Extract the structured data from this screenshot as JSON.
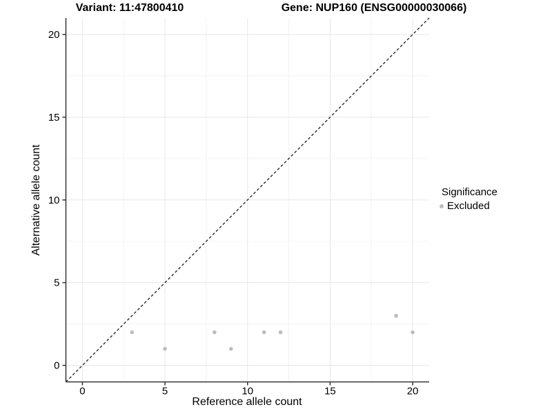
{
  "chart_data": {
    "type": "scatter",
    "titles": {
      "left": "Variant: 11:47800410",
      "right": "Gene: NUP160 (ENSG00000030066)"
    },
    "xlabel": "Reference allele count",
    "ylabel": "Alternative allele count",
    "xlim": [
      -1,
      21
    ],
    "ylim": [
      -1,
      21
    ],
    "xticks": [
      0,
      5,
      10,
      15,
      20
    ],
    "yticks": [
      0,
      5,
      10,
      15,
      20
    ],
    "minor_xticks": [
      2.5,
      7.5,
      12.5,
      17.5
    ],
    "minor_yticks": [
      2.5,
      7.5,
      12.5,
      17.5
    ],
    "grid": "major+minor",
    "identity_line": {
      "style": "dashed",
      "from": [
        -1,
        -1
      ],
      "to": [
        21,
        21
      ]
    },
    "series": [
      {
        "name": "Excluded",
        "color": "#bcbcbc",
        "points": [
          [
            3,
            2
          ],
          [
            5,
            1
          ],
          [
            8,
            2
          ],
          [
            9,
            1
          ],
          [
            11,
            2
          ],
          [
            12,
            2
          ],
          [
            19,
            3
          ],
          [
            20,
            2
          ]
        ]
      }
    ],
    "legend": {
      "title": "Significance",
      "position": "right",
      "entries": [
        {
          "label": "Excluded",
          "color": "#bcbcbc"
        }
      ]
    }
  },
  "colors": {
    "background": "#ffffff",
    "grid_major": "#e7e7e7",
    "grid_minor": "#f3f3f3",
    "axis": "#333333",
    "text": "#000000",
    "point": "#bcbcbc"
  }
}
